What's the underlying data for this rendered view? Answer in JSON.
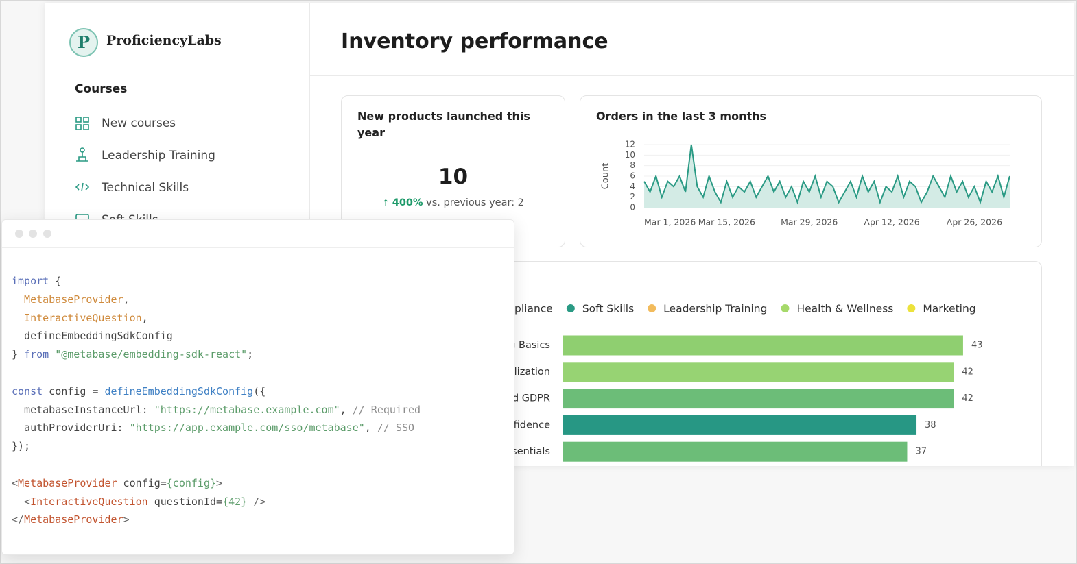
{
  "sidebar": {
    "logo": "P",
    "brand": "ProficiencyLabs",
    "section": "Courses",
    "items": [
      "New courses",
      "Leadership Training",
      "Technical Skills",
      "Soft Skills"
    ]
  },
  "header": {
    "title": "Inventory performance"
  },
  "kpi": {
    "title": "New products launched this year",
    "value": 10,
    "change": "400%",
    "comparison": "vs. previous year: 2"
  },
  "chart_data": [
    {
      "type": "line",
      "title": "Orders in the last 3 months",
      "y_label": "Count",
      "color": "#2a9a84",
      "area_color": "#d3ebe5",
      "x": [
        "2026-03-01",
        "2026-03-02",
        "2026-03-03",
        "2026-03-04",
        "2026-03-05",
        "2026-03-06",
        "2026-03-07",
        "2026-03-08",
        "2026-03-09",
        "2026-03-10",
        "2026-03-11",
        "2026-03-12",
        "2026-03-13",
        "2026-03-14",
        "2026-03-15",
        "2026-03-16",
        "2026-03-17",
        "2026-03-18",
        "2026-03-19",
        "2026-03-20",
        "2026-03-21",
        "2026-03-22",
        "2026-03-23",
        "2026-03-24",
        "2026-03-25",
        "2026-03-26",
        "2026-03-27",
        "2026-03-28",
        "2026-03-29",
        "2026-03-30",
        "2026-03-31",
        "2026-04-01",
        "2026-04-02",
        "2026-04-03",
        "2026-04-04",
        "2026-04-05",
        "2026-04-06",
        "2026-04-07",
        "2026-04-08",
        "2026-04-09",
        "2026-04-10",
        "2026-04-11",
        "2026-04-12",
        "2026-04-13",
        "2026-04-14",
        "2026-04-15",
        "2026-04-16",
        "2026-04-17",
        "2026-04-18",
        "2026-04-19",
        "2026-04-20",
        "2026-04-21",
        "2026-04-22",
        "2026-04-23",
        "2026-04-24",
        "2026-04-25",
        "2026-04-26",
        "2026-04-27",
        "2026-04-28",
        "2026-04-29",
        "2026-04-30",
        "2026-05-01",
        "2026-05-02"
      ],
      "values": [
        5,
        3,
        6,
        2,
        5,
        4,
        6,
        3,
        12,
        4,
        2,
        6,
        3,
        1,
        5,
        2,
        4,
        3,
        5,
        2,
        4,
        6,
        3,
        5,
        2,
        4,
        1,
        5,
        3,
        6,
        2,
        5,
        4,
        1,
        3,
        5,
        2,
        6,
        3,
        5,
        1,
        4,
        3,
        6,
        2,
        5,
        4,
        1,
        3,
        6,
        4,
        2,
        6,
        3,
        5,
        2,
        4,
        1,
        5,
        3,
        6,
        2,
        6
      ],
      "xlim": [
        "2026-03-01",
        "2026-05-02"
      ],
      "xticks": [
        {
          "value": "2026-03-01",
          "label": "Mar 1, 2026"
        },
        {
          "value": "2026-03-15",
          "label": "Mar 15, 2026"
        },
        {
          "value": "2026-03-29",
          "label": "Mar 29, 2026"
        },
        {
          "value": "2026-04-12",
          "label": "Apr 12, 2026"
        },
        {
          "value": "2026-04-26",
          "label": "Apr 26, 2026"
        }
      ],
      "ylim": [
        0,
        12
      ],
      "yticks": [
        0,
        2,
        4,
        6,
        8,
        10,
        12
      ],
      "grid": true
    },
    {
      "type": "bar",
      "orientation": "horizontal",
      "legend": [
        {
          "name": "pliance",
          "color": "#5b8fd5"
        },
        {
          "name": "Soft Skills",
          "color": "#2a9a84"
        },
        {
          "name": "Leadership Training",
          "color": "#f2bb5c"
        },
        {
          "name": "Health & Wellness",
          "color": "#a6d96a"
        },
        {
          "name": "Marketing",
          "color": "#ece23c"
        }
      ],
      "categories": [
        "g Basics",
        "lization",
        "d GDPR",
        "fidence",
        "sentials"
      ],
      "values": [
        43,
        42,
        42,
        38,
        37
      ],
      "colors": [
        "#8fcf70",
        "#97d373",
        "#6cbd78",
        "#279784",
        "#6cbd78"
      ],
      "xlim": [
        0,
        50
      ]
    }
  ],
  "code": {
    "lines": [
      [
        {
          "text": "import",
          "color": "#5a6fb8"
        },
        {
          "text": " {",
          "color": "#444"
        }
      ],
      [
        {
          "text": "  MetabaseProvider",
          "color": "#cf8a3c"
        },
        {
          "text": ",",
          "color": "#444"
        }
      ],
      [
        {
          "text": "  InteractiveQuestion",
          "color": "#cf8a3c"
        },
        {
          "text": ",",
          "color": "#444"
        }
      ],
      [
        {
          "text": "  defineEmbeddingSdkConfig",
          "color": "#444"
        }
      ],
      [
        {
          "text": "} ",
          "color": "#444"
        },
        {
          "text": "from",
          "color": "#5a6fb8"
        },
        {
          "text": " \"@metabase/embedding-sdk-react\"",
          "color": "#5c9c6a"
        },
        {
          "text": ";",
          "color": "#444"
        }
      ],
      [],
      [
        {
          "text": "const",
          "color": "#5a6fb8"
        },
        {
          "text": " config = ",
          "color": "#444"
        },
        {
          "text": "defineEmbeddingSdkConfig",
          "color": "#3f80c4"
        },
        {
          "text": "({",
          "color": "#444"
        }
      ],
      [
        {
          "text": "  metabaseInstanceUrl: ",
          "color": "#444"
        },
        {
          "text": "\"https://metabase.example.com\"",
          "color": "#5c9c6a"
        },
        {
          "text": ", ",
          "color": "#444"
        },
        {
          "text": "// Required",
          "color": "#8c8c8c"
        }
      ],
      [
        {
          "text": "  authProviderUri: ",
          "color": "#444"
        },
        {
          "text": "\"https://app.example.com/sso/metabase\"",
          "color": "#5c9c6a"
        },
        {
          "text": ", ",
          "color": "#444"
        },
        {
          "text": "// SSO",
          "color": "#8c8c8c"
        }
      ],
      [
        {
          "text": "});",
          "color": "#444"
        }
      ],
      [],
      [
        {
          "text": "<",
          "color": "#666"
        },
        {
          "text": "MetabaseProvider",
          "color": "#c2542f"
        },
        {
          "text": " config=",
          "color": "#444"
        },
        {
          "text": "{config}",
          "color": "#5c9c6a"
        },
        {
          "text": ">",
          "color": "#666"
        }
      ],
      [
        {
          "text": "  <",
          "color": "#666"
        },
        {
          "text": "InteractiveQuestion",
          "color": "#c2542f"
        },
        {
          "text": " questionId=",
          "color": "#444"
        },
        {
          "text": "{42}",
          "color": "#5c9c6a"
        },
        {
          "text": " />",
          "color": "#666"
        }
      ],
      [
        {
          "text": "</",
          "color": "#666"
        },
        {
          "text": "MetabaseProvider",
          "color": "#c2542f"
        },
        {
          "text": ">",
          "color": "#666"
        }
      ]
    ]
  }
}
